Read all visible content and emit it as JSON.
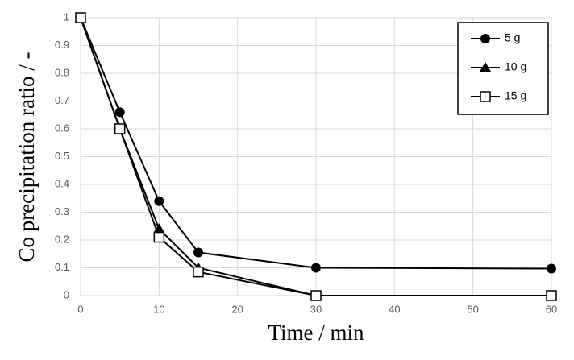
{
  "chart_data": {
    "type": "line",
    "xlabel": "Time / min",
    "ylabel": "Co precipitation ratio / -",
    "x": [
      0,
      5,
      10,
      15,
      30,
      60
    ],
    "series": [
      {
        "name": "5 g",
        "color": "#000000",
        "marker": "circle",
        "values": [
          1,
          0.66,
          0.34,
          0.155,
          0.1,
          0.097
        ]
      },
      {
        "name": "10 g",
        "color": "#000000",
        "marker": "triangle",
        "values": [
          1,
          0.6,
          0.24,
          0.1,
          0,
          0
        ]
      },
      {
        "name": "15 g",
        "color": "#000000",
        "marker": "open-square",
        "values": [
          1,
          0.6,
          0.21,
          0.085,
          0,
          0
        ]
      }
    ],
    "xlim": [
      0,
      60
    ],
    "xticks": [
      0,
      10,
      20,
      30,
      40,
      50,
      60
    ],
    "ylim": [
      0,
      1
    ],
    "yticks": [
      0,
      0.1,
      0.2,
      0.3,
      0.4,
      0.5,
      0.6,
      0.7,
      0.8,
      0.9,
      1
    ],
    "grid": true,
    "legend": "upper-right"
  }
}
